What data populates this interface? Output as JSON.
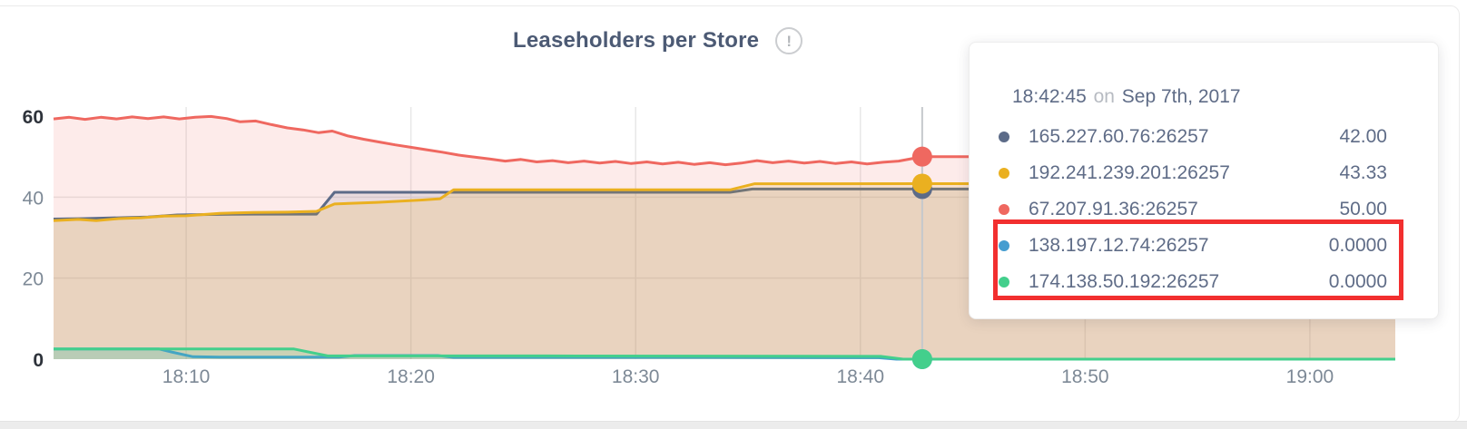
{
  "header": {
    "title": "Leaseholders per Store",
    "info_glyph": "!"
  },
  "tooltip": {
    "time": "18:42:45",
    "connector": "on",
    "date": "Sep 7th, 2017",
    "rows": [
      {
        "label": "165.227.60.76:26257",
        "value": "42.00",
        "color": "#5c6b88",
        "highlighted": false
      },
      {
        "label": "192.241.239.201:26257",
        "value": "43.33",
        "color": "#eab020",
        "highlighted": false
      },
      {
        "label": "67.207.91.36:26257",
        "value": "50.00",
        "color": "#ef6860",
        "highlighted": false
      },
      {
        "label": "138.197.12.74:26257",
        "value": "0.0000",
        "color": "#459dd0",
        "highlighted": true
      },
      {
        "label": "174.138.50.192:26257",
        "value": "0.0000",
        "color": "#43cf8c",
        "highlighted": true
      }
    ],
    "highlight_color": "#f22f2f"
  },
  "chart_data": {
    "type": "area",
    "title": "Leaseholders per Store",
    "xlabel": "",
    "ylabel": "",
    "x_unit": "time (minutes after 18:00)",
    "x_ticks": [
      {
        "t": 10,
        "label": "18:10"
      },
      {
        "t": 20,
        "label": "18:20"
      },
      {
        "t": 30,
        "label": "18:30"
      },
      {
        "t": 40,
        "label": "18:40"
      },
      {
        "t": 50,
        "label": "18:50"
      },
      {
        "t": 60,
        "label": "19:00"
      }
    ],
    "y_ticks": [
      {
        "v": 0,
        "label": "0",
        "strong": true
      },
      {
        "v": 20,
        "label": "20",
        "strong": false
      },
      {
        "v": 40,
        "label": "40",
        "strong": false
      },
      {
        "v": 60,
        "label": "60",
        "strong": true
      }
    ],
    "xlim_minutes": [
      4.1,
      63.8
    ],
    "ylim": [
      0,
      62.2
    ],
    "grid": true,
    "legend_position": "tooltip",
    "grid_color": "#e8e8e8",
    "hover": {
      "time_minutes": 42.75,
      "line_color": "#c5c8cc",
      "dot_radius": 11
    },
    "series": [
      {
        "name": "67.207.91.36:26257",
        "color": "#ef6860",
        "fill": "rgba(239,104,96,0.13)",
        "hover_value": 50.0,
        "points": [
          [
            4.1,
            59.3
          ],
          [
            4.8,
            59.7
          ],
          [
            5.5,
            59.2
          ],
          [
            6.2,
            59.7
          ],
          [
            6.9,
            59.3
          ],
          [
            7.6,
            59.8
          ],
          [
            8.3,
            59.4
          ],
          [
            9.0,
            59.8
          ],
          [
            9.7,
            59.3
          ],
          [
            10.4,
            59.7
          ],
          [
            11.1,
            59.9
          ],
          [
            11.8,
            59.4
          ],
          [
            12.4,
            58.6
          ],
          [
            13.1,
            58.8
          ],
          [
            13.8,
            57.9
          ],
          [
            14.5,
            57.1
          ],
          [
            15.2,
            56.6
          ],
          [
            15.9,
            55.9
          ],
          [
            16.5,
            56.3
          ],
          [
            17.2,
            55.1
          ],
          [
            17.9,
            54.3
          ],
          [
            18.6,
            53.6
          ],
          [
            19.3,
            52.9
          ],
          [
            20.0,
            52.3
          ],
          [
            20.7,
            51.7
          ],
          [
            21.4,
            51.1
          ],
          [
            22.1,
            50.4
          ],
          [
            22.8,
            49.9
          ],
          [
            23.5,
            49.4
          ],
          [
            24.2,
            48.9
          ],
          [
            24.9,
            49.3
          ],
          [
            25.6,
            48.7
          ],
          [
            26.3,
            49.0
          ],
          [
            27.0,
            48.5
          ],
          [
            27.7,
            48.9
          ],
          [
            28.4,
            48.4
          ],
          [
            29.1,
            48.8
          ],
          [
            29.8,
            48.3
          ],
          [
            30.5,
            48.7
          ],
          [
            31.2,
            48.2
          ],
          [
            31.9,
            48.6
          ],
          [
            32.6,
            48.1
          ],
          [
            33.3,
            48.5
          ],
          [
            34.0,
            48.0
          ],
          [
            34.7,
            48.4
          ],
          [
            35.4,
            49.0
          ],
          [
            36.1,
            48.5
          ],
          [
            36.8,
            48.9
          ],
          [
            37.5,
            48.4
          ],
          [
            38.2,
            48.8
          ],
          [
            38.9,
            48.3
          ],
          [
            39.6,
            48.7
          ],
          [
            40.3,
            48.2
          ],
          [
            41.0,
            48.6
          ],
          [
            41.7,
            48.9
          ],
          [
            42.3,
            49.5
          ],
          [
            42.75,
            50.0
          ],
          [
            63.8,
            50.0
          ]
        ]
      },
      {
        "name": "165.227.60.76:26257",
        "color": "#5c6b88",
        "fill": "rgba(92,107,136,0.12)",
        "hover_value": 42.0,
        "points": [
          [
            4.1,
            34.6
          ],
          [
            5.5,
            34.7
          ],
          [
            7.0,
            34.9
          ],
          [
            8.3,
            35.1
          ],
          [
            9.6,
            35.6
          ],
          [
            11.0,
            35.7
          ],
          [
            13.0,
            35.8
          ],
          [
            15.8,
            35.8
          ],
          [
            16.6,
            41.2
          ],
          [
            34.2,
            41.2
          ],
          [
            35.2,
            42.0
          ],
          [
            42.75,
            42.0
          ],
          [
            63.8,
            42.0
          ]
        ]
      },
      {
        "name": "192.241.239.201:26257",
        "color": "#eab020",
        "fill": "rgba(234,176,32,0.16)",
        "hover_value": 43.33,
        "points": [
          [
            4.1,
            34.2
          ],
          [
            5.2,
            34.5
          ],
          [
            6.0,
            34.2
          ],
          [
            7.0,
            34.7
          ],
          [
            8.0,
            34.9
          ],
          [
            9.0,
            35.3
          ],
          [
            10.0,
            35.4
          ],
          [
            11.5,
            36.0
          ],
          [
            13.0,
            36.2
          ],
          [
            14.5,
            36.3
          ],
          [
            15.8,
            36.5
          ],
          [
            16.6,
            38.3
          ],
          [
            18.5,
            38.7
          ],
          [
            20.5,
            39.3
          ],
          [
            21.3,
            39.6
          ],
          [
            21.9,
            41.8
          ],
          [
            34.2,
            41.8
          ],
          [
            35.3,
            43.3
          ],
          [
            42.75,
            43.33
          ],
          [
            63.8,
            43.33
          ]
        ]
      },
      {
        "name": "138.197.12.74:26257",
        "color": "#459dd0",
        "fill": "rgba(69,157,208,0.12)",
        "hover_value": 0.0,
        "points": [
          [
            4.1,
            2.5
          ],
          [
            8.8,
            2.5
          ],
          [
            9.4,
            1.7
          ],
          [
            10.3,
            0.6
          ],
          [
            11.5,
            0.5
          ],
          [
            16.8,
            0.5
          ],
          [
            17.5,
            0.9
          ],
          [
            21.2,
            0.9
          ],
          [
            21.9,
            0.45
          ],
          [
            33.0,
            0.45
          ],
          [
            40.8,
            0.35
          ],
          [
            41.6,
            0.0
          ],
          [
            63.8,
            0.0
          ]
        ]
      },
      {
        "name": "174.138.50.192:26257",
        "color": "#43cf8c",
        "fill": "rgba(67,207,140,0.18)",
        "hover_value": 0.0,
        "points": [
          [
            4.1,
            2.5
          ],
          [
            14.8,
            2.5
          ],
          [
            16.3,
            0.8
          ],
          [
            26.0,
            0.8
          ],
          [
            40.9,
            0.7
          ],
          [
            41.9,
            0.0
          ],
          [
            63.8,
            0.0
          ]
        ]
      }
    ],
    "axis_label_color": "#7d8996",
    "axis_label_strong_color": "#2e333b"
  }
}
